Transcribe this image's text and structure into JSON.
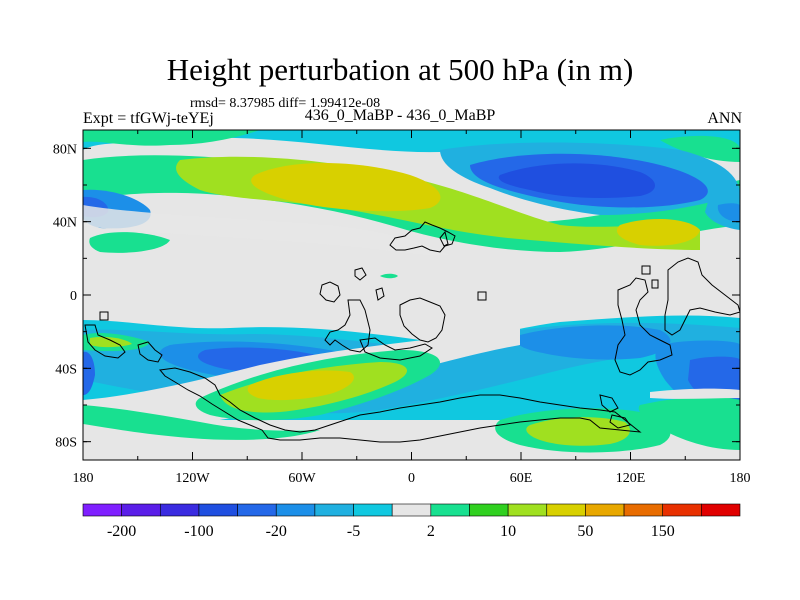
{
  "header": {
    "title": "Height perturbation at 500 hPa (in m)",
    "stats": "rmsd= 8.37985 diff= 1.99412e-08",
    "expt": "Expt = tfGWj-teYEj",
    "subtitle": "436_0_MaBP - 436_0_MaBP",
    "season": "ANN"
  },
  "chart_data": {
    "type": "heatmap",
    "title": "Height perturbation at 500 hPa (in m)",
    "xlim": [
      -180,
      180
    ],
    "ylim": [
      -90,
      90
    ],
    "x_ticks": [
      {
        "value": -180,
        "label": "180"
      },
      {
        "value": -120,
        "label": "120W"
      },
      {
        "value": -60,
        "label": "60W"
      },
      {
        "value": 0,
        "label": "0"
      },
      {
        "value": 60,
        "label": "60E"
      },
      {
        "value": 120,
        "label": "120E"
      },
      {
        "value": 180,
        "label": "180"
      }
    ],
    "y_ticks": [
      {
        "value": 80,
        "label": "80N"
      },
      {
        "value": 40,
        "label": "40N"
      },
      {
        "value": 0,
        "label": "0"
      },
      {
        "value": -40,
        "label": "40S"
      },
      {
        "value": -80,
        "label": "80S"
      }
    ],
    "colorbar": {
      "colors": [
        "#7f1fff",
        "#5a1ee8",
        "#3a2be0",
        "#1f4fe0",
        "#2468e8",
        "#1c8fe8",
        "#20b0e0",
        "#10c8e0",
        "#e6e6e6",
        "#18e090",
        "#30d020",
        "#a0e020",
        "#d8d000",
        "#e8a800",
        "#e86c00",
        "#e83000",
        "#e00000"
      ],
      "labels": [
        {
          "index": 1,
          "text": "-200"
        },
        {
          "index": 3,
          "text": "-100"
        },
        {
          "index": 5,
          "text": "-20"
        },
        {
          "index": 7,
          "text": "-5"
        },
        {
          "index": 9,
          "text": "2"
        },
        {
          "index": 11,
          "text": "10"
        },
        {
          "index": 13,
          "text": "50"
        },
        {
          "index": 15,
          "text": "150"
        }
      ]
    },
    "bands": [
      {
        "lat_min": 70,
        "lat_max": 90,
        "level": 1,
        "note": "Arctic green/cyan"
      },
      {
        "lat_min": 40,
        "lat_max": 70,
        "level": 3,
        "note": "NH positive band"
      },
      {
        "lat_min": 30,
        "lat_max": 55,
        "level": -2,
        "note": "NH negative band"
      },
      {
        "lat_min": -15,
        "lat_max": 15,
        "level": 0
      },
      {
        "lat_min": -50,
        "lat_max": -20,
        "level": -2,
        "note": "SH negative band"
      },
      {
        "lat_min": -70,
        "lat_max": -40,
        "level": 2,
        "note": "SH positive band"
      }
    ]
  }
}
